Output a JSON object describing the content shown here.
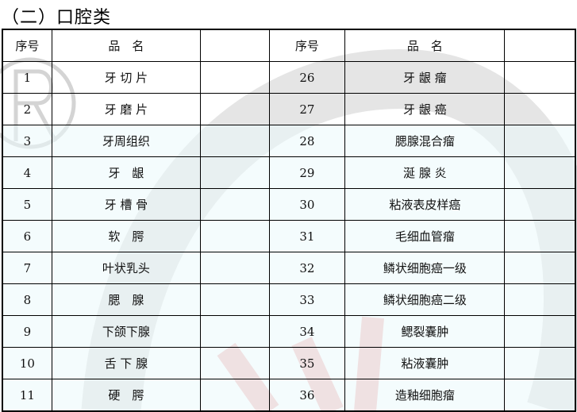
{
  "title": "（二）口腔类",
  "header": {
    "no": "序号",
    "name": "品　名"
  },
  "rows": [
    {
      "l_no": "1",
      "l_name": "牙 切 片",
      "r_no": "26",
      "r_name": "牙 龈 瘤"
    },
    {
      "l_no": "2",
      "l_name": "牙 磨 片",
      "r_no": "27",
      "r_name": "牙 龈 癌"
    },
    {
      "l_no": "3",
      "l_name": "牙周组织",
      "r_no": "28",
      "r_name": "腮腺混合瘤"
    },
    {
      "l_no": "4",
      "l_name": "牙　龈",
      "r_no": "29",
      "r_name": "涎 腺 炎"
    },
    {
      "l_no": "5",
      "l_name": "牙 槽 骨",
      "r_no": "30",
      "r_name": "粘液表皮样癌"
    },
    {
      "l_no": "6",
      "l_name": "软　腭",
      "r_no": "31",
      "r_name": "毛细血管瘤"
    },
    {
      "l_no": "7",
      "l_name": "叶状乳头",
      "r_no": "32",
      "r_name": "鳞状细胞癌一级"
    },
    {
      "l_no": "8",
      "l_name": "腮　腺",
      "r_no": "33",
      "r_name": "鳞状细胞癌二级"
    },
    {
      "l_no": "9",
      "l_name": "下颌下腺",
      "r_no": "34",
      "r_name": "鳃裂囊肿"
    },
    {
      "l_no": "10",
      "l_name": "舌 下 腺",
      "r_no": "35",
      "r_name": "粘液囊肿"
    },
    {
      "l_no": "11",
      "l_name": "硬　腭",
      "r_no": "36",
      "r_name": "造釉细胞瘤"
    }
  ],
  "watermark": {
    "symbol": "®",
    "arc_color": "#cfcfcf",
    "figure_color": "#f2b5b5"
  }
}
